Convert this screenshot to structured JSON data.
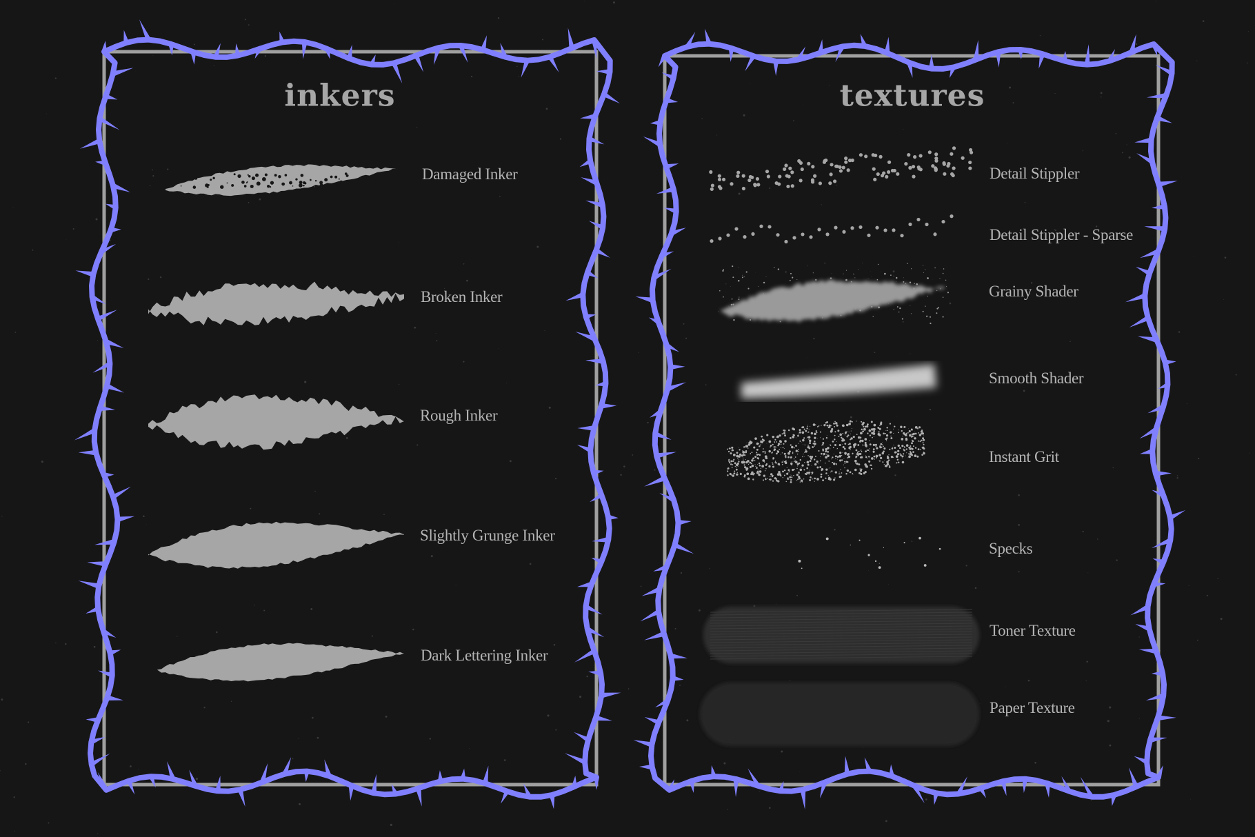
{
  "colors": {
    "background": "#161616",
    "thorn": "#8080ff",
    "frame": "#a0a0a0",
    "brush": "#a6a6a6",
    "text": "#b4b4b4"
  },
  "panels": [
    {
      "title": "inkers",
      "brushes": [
        {
          "name": "Damaged Inker",
          "style": "damaged"
        },
        {
          "name": "Broken Inker",
          "style": "broken"
        },
        {
          "name": "Rough Inker",
          "style": "rough"
        },
        {
          "name": "Slightly Grunge Inker",
          "style": "grunge"
        },
        {
          "name": "Dark Lettering Inker",
          "style": "lettering"
        }
      ]
    },
    {
      "title": "textures",
      "brushes": [
        {
          "name": "Detail Stippler",
          "style": "stipple"
        },
        {
          "name": "Detail Stippler - Sparse",
          "style": "sparse"
        },
        {
          "name": "Grainy Shader",
          "style": "grainy"
        },
        {
          "name": "Smooth Shader",
          "style": "smooth"
        },
        {
          "name": "Instant Grit",
          "style": "grit"
        },
        {
          "name": "Specks",
          "style": "specks"
        },
        {
          "name": "Toner Texture",
          "style": "toner"
        },
        {
          "name": "Paper Texture",
          "style": "paper"
        }
      ]
    }
  ]
}
